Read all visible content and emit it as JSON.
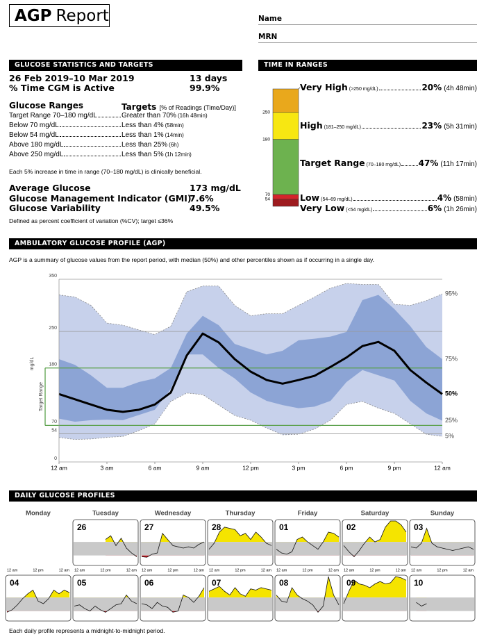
{
  "header": {
    "title_bold": "AGP",
    "title_rest": "Report",
    "name_label": "Name",
    "mrn_label": "MRN"
  },
  "stats": {
    "title": "GLUCOSE STATISTICS AND TARGETS",
    "period": "26 Feb 2019–10 Mar 2019",
    "period_days": "13 days",
    "cgm_label": "% Time CGM is Active",
    "cgm_value": "99.9%",
    "ranges_header": "Glucose Ranges",
    "targets_header": "Targets",
    "targets_note": "[% of Readings (Time/Day)]",
    "rows": [
      {
        "range": "Target Range 70–180 mg/dL",
        "target": "Greater than 70%",
        "detail": "(16h 48min)"
      },
      {
        "range": "Below 70 mg/dL",
        "target": "Less than 4%",
        "detail": "(58min)"
      },
      {
        "range": "Below 54 mg/dL",
        "target": "Less than 1%",
        "detail": "(14min)"
      },
      {
        "range": "Above 180 mg/dL",
        "target": "Less than 25%",
        "detail": "(6h)"
      },
      {
        "range": "Above 250 mg/dL",
        "target": "Less than 5%",
        "detail": "(1h 12min)"
      }
    ],
    "tir_note": "Each 5% increase in time in range (70–180 mg/dL) is clinically beneficial.",
    "metrics": [
      {
        "label": "Average Glucose",
        "value": "173 mg/dL"
      },
      {
        "label": "Glucose Management Indicator (GMI)",
        "value": "7.6%"
      },
      {
        "label": "Glucose Variability",
        "value": "49.5%"
      }
    ],
    "cv_note": "Defined as percent coefficient of variation (%CV); target ≤36%"
  },
  "time_in_ranges": {
    "title": "TIME IN RANGES",
    "type": "stacked-bar",
    "categories": [
      "Very High",
      "High",
      "Target Range",
      "Low",
      "Very Low"
    ],
    "ranges": [
      "(>250 mg/dL)",
      "(181–250 mg/dL)",
      "(70–180 mg/dL)",
      "(54–69 mg/dL)",
      "(<54 mg/dL)"
    ],
    "values": [
      20,
      23,
      47,
      4,
      6
    ],
    "value_labels": [
      "20%",
      "23%",
      "47%",
      "4%",
      "6%"
    ],
    "durations": [
      "(4h 48min)",
      "(5h 31min)",
      "(11h 17min)",
      "(58min)",
      "(1h 26min)"
    ],
    "colors": [
      "#e9a81c",
      "#f7e712",
      "#6db24f",
      "#d3242b",
      "#9e1b1f"
    ],
    "boundaries": [
      250,
      180,
      70,
      54
    ]
  },
  "agp": {
    "title": "AMBULATORY GLUCOSE PROFILE (AGP)",
    "description": "AGP is a summary of glucose values from the report period, with median (50%) and other percentiles shown as if occurring in a single day.",
    "chart": {
      "type": "percentile-area",
      "y_label": "mg/dL",
      "target_label": "Target Range",
      "x": [
        0,
        1,
        2,
        3,
        4,
        5,
        6,
        7,
        8,
        9,
        10,
        11,
        12,
        13,
        14,
        15,
        16,
        17,
        18,
        19,
        20,
        21,
        22,
        23,
        24
      ],
      "xlim": [
        0,
        24
      ],
      "xticks": [
        {
          "value": 0,
          "label": "12 am"
        },
        {
          "value": 3,
          "label": "3 am"
        },
        {
          "value": 6,
          "label": "6 am"
        },
        {
          "value": 9,
          "label": "9 am"
        },
        {
          "value": 12,
          "label": "12 pm"
        },
        {
          "value": 15,
          "label": "3 pm"
        },
        {
          "value": 18,
          "label": "6 pm"
        },
        {
          "value": 21,
          "label": "9 pm"
        },
        {
          "value": 24,
          "label": "12 am"
        }
      ],
      "ylim": [
        0,
        350
      ],
      "yticks": [
        0,
        54,
        70,
        180,
        250,
        350
      ],
      "target_range": [
        70,
        180
      ],
      "series": [
        {
          "name": "95%",
          "color": "#c7d1eb",
          "values": [
            320,
            316,
            300,
            266,
            262,
            253,
            244,
            260,
            326,
            337,
            337,
            300,
            280,
            284,
            284,
            300,
            316,
            333,
            342,
            340,
            340,
            302,
            300,
            309,
            322
          ]
        },
        {
          "name": "75%",
          "color": "#8ca4d5",
          "values": [
            197,
            186,
            166,
            142,
            142,
            153,
            160,
            180,
            246,
            280,
            262,
            226,
            216,
            206,
            213,
            233,
            236,
            240,
            249,
            310,
            320,
            293,
            260,
            220,
            197
          ]
        },
        {
          "name": "50%",
          "color": "#000000",
          "values": [
            130,
            120,
            110,
            100,
            96,
            100,
            110,
            133,
            204,
            246,
            229,
            197,
            173,
            157,
            150,
            157,
            165,
            182,
            200,
            222,
            230,
            213,
            176,
            152,
            130
          ]
        },
        {
          "name": "25%",
          "color": "#8ca4d5",
          "values": [
            83,
            77,
            80,
            81,
            80,
            90,
            100,
            140,
            206,
            206,
            180,
            160,
            133,
            117,
            109,
            103,
            106,
            117,
            153,
            176,
            166,
            156,
            117,
            93,
            79
          ]
        },
        {
          "name": "5%",
          "color": "#c7d1eb",
          "values": [
            47,
            43,
            44,
            47,
            49,
            60,
            73,
            116,
            132,
            129,
            109,
            89,
            80,
            65,
            52,
            53,
            63,
            80,
            110,
            116,
            103,
            93,
            73,
            53,
            49
          ]
        }
      ]
    }
  },
  "daily": {
    "title": "DAILY GLUCOSE PROFILES",
    "weekdays": [
      "Monday",
      "Tuesday",
      "Wednesday",
      "Thursday",
      "Friday",
      "Saturday",
      "Sunday"
    ],
    "x": [
      0,
      2,
      4,
      6,
      8,
      10,
      12,
      14,
      16,
      18,
      20,
      22,
      24
    ],
    "xlim": [
      0,
      24
    ],
    "xticks": [
      {
        "value": 0,
        "label": "12 am"
      },
      {
        "value": 12,
        "label": "12 pm"
      },
      {
        "value": 24,
        "label": "12 am"
      }
    ],
    "ylim": [
      0,
      350
    ],
    "target_range": [
      70,
      180
    ],
    "colors": {
      "high": "#f5e400",
      "target": "#c9c9c9",
      "low": "#c0141c"
    },
    "weeks": [
      [
        null,
        {
          "label": "26",
          "values": [
            null,
            null,
            null,
            null,
            null,
            null,
            200,
            230,
            150,
            210,
            130,
            90,
            60
          ]
        },
        {
          "label": "27",
          "values": [
            60,
            55,
            80,
            90,
            250,
            200,
            150,
            140,
            130,
            140,
            130,
            160,
            180
          ]
        },
        {
          "label": "28",
          "values": [
            120,
            170,
            260,
            300,
            290,
            280,
            230,
            250,
            200,
            260,
            220,
            170,
            150
          ]
        },
        {
          "label": "01",
          "values": [
            120,
            90,
            80,
            100,
            200,
            220,
            180,
            150,
            120,
            180,
            260,
            250,
            220
          ]
        },
        {
          "label": "02",
          "values": [
            150,
            100,
            60,
            110,
            170,
            220,
            180,
            200,
            300,
            350,
            350,
            320,
            260
          ]
        },
        {
          "label": "03",
          "values": [
            140,
            130,
            170,
            290,
            170,
            140,
            130,
            120,
            110,
            120,
            130,
            140,
            120
          ]
        }
      ],
      [
        {
          "label": "04",
          "values": [
            60,
            80,
            120,
            170,
            210,
            240,
            150,
            130,
            170,
            240,
            210,
            240,
            220
          ]
        },
        {
          "label": "05",
          "values": [
            110,
            120,
            90,
            70,
            110,
            80,
            60,
            90,
            120,
            130,
            200,
            150,
            130
          ]
        },
        {
          "label": "06",
          "values": [
            130,
            120,
            90,
            140,
            110,
            100,
            60,
            70,
            200,
            180,
            140,
            190,
            260
          ]
        },
        {
          "label": "07",
          "values": [
            230,
            250,
            270,
            230,
            200,
            260,
            210,
            190,
            250,
            240,
            260,
            250,
            240
          ]
        },
        {
          "label": "08",
          "values": [
            200,
            150,
            140,
            260,
            200,
            170,
            150,
            120,
            60,
            110,
            350,
            200,
            120
          ]
        },
        {
          "label": "09",
          "values": [
            130,
            230,
            320,
            290,
            280,
            260,
            290,
            310,
            290,
            300,
            350,
            340,
            320
          ]
        },
        {
          "label": "10",
          "values": [
            null,
            140,
            110,
            130,
            null,
            null,
            null,
            null,
            null,
            null,
            null,
            null,
            null
          ]
        }
      ]
    ],
    "footnote": "Each daily profile represents a midnight-to-midnight period."
  }
}
